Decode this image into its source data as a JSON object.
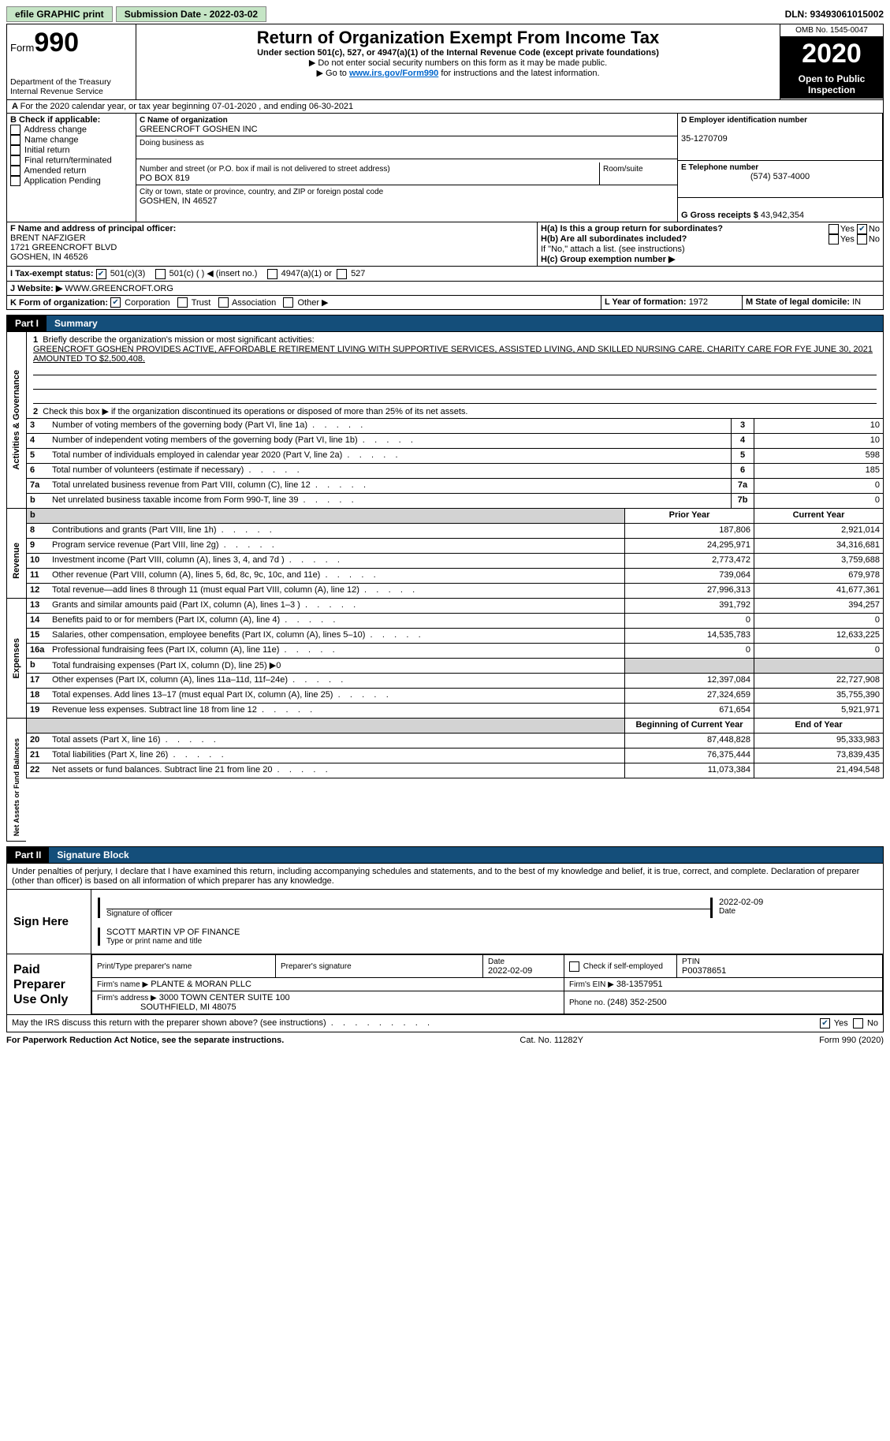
{
  "topbar": {
    "efile": "efile GRAPHIC print",
    "subdate_label": "Submission Date - 2022-03-02",
    "dln": "DLN: 93493061015002"
  },
  "header": {
    "form_label": "Form",
    "form_no": "990",
    "dept": "Department of the Treasury\nInternal Revenue Service",
    "title": "Return of Organization Exempt From Income Tax",
    "subtitle": "Under section 501(c), 527, or 4947(a)(1) of the Internal Revenue Code (except private foundations)",
    "note1": "▶ Do not enter social security numbers on this form as it may be made public.",
    "note2_a": "▶ Go to ",
    "note2_link": "www.irs.gov/Form990",
    "note2_b": " for instructions and the latest information.",
    "omb": "OMB No. 1545-0047",
    "year": "2020",
    "open": "Open to Public Inspection"
  },
  "A": {
    "line": "For the 2020 calendar year, or tax year beginning 07-01-2020   , and ending 06-30-2021"
  },
  "B": {
    "title": "B Check if applicable:",
    "items": [
      "Address change",
      "Name change",
      "Initial return",
      "Final return/terminated",
      "Amended return",
      "Application Pending"
    ]
  },
  "C": {
    "name_label": "C Name of organization",
    "name": "GREENCROFT GOSHEN INC",
    "dba_label": "Doing business as",
    "dba": "",
    "street_label": "Number and street (or P.O. box if mail is not delivered to street address)",
    "street": "PO BOX 819",
    "room_label": "Room/suite",
    "city_label": "City or town, state or province, country, and ZIP or foreign postal code",
    "city": "GOSHEN, IN  46527"
  },
  "D": {
    "label": "D Employer identification number",
    "value": "35-1270709"
  },
  "E": {
    "label": "E Telephone number",
    "value": "(574) 537-4000"
  },
  "G": {
    "label": "G Gross receipts $ ",
    "value": "43,942,354"
  },
  "F": {
    "label": "F  Name and address of principal officer:",
    "lines": [
      "BRENT NAFZIGER",
      "1721 GREENCROFT BLVD",
      "GOSHEN, IN  46526"
    ]
  },
  "H": {
    "a_label": "H(a)  Is this a group return for subordinates?",
    "a_yes": "Yes",
    "a_no": "No",
    "b_label": "H(b)  Are all subordinates included?",
    "b_note": "If \"No,\" attach a list. (see instructions)",
    "c_label": "H(c)  Group exemption number ▶"
  },
  "I": {
    "label": "I    Tax-exempt status:",
    "opt1": "501(c)(3)",
    "opt2": "501(c) (  ) ◀ (insert no.)",
    "opt3": "4947(a)(1) or",
    "opt4": "527"
  },
  "J": {
    "label": "J   Website: ▶",
    "value": "WWW.GREENCROFT.ORG"
  },
  "K": {
    "label": "K Form of organization:",
    "opts": [
      "Corporation",
      "Trust",
      "Association",
      "Other ▶"
    ]
  },
  "L": {
    "label": "L Year of formation: ",
    "value": "1972"
  },
  "M": {
    "label": "M State of legal domicile: ",
    "value": "IN"
  },
  "part1": {
    "tag": "Part I",
    "title": "Summary",
    "q1_label": "Briefly describe the organization's mission or most significant activities:",
    "q1_text": "GREENCROFT GOSHEN PROVIDES ACTIVE, AFFORDABLE RETIREMENT LIVING WITH SUPPORTIVE SERVICES, ASSISTED LIVING, AND SKILLED NURSING CARE. CHARITY CARE FOR FYE JUNE 30, 2021 AMOUNTED TO $2,500,408.",
    "q2": "Check this box ▶      if the organization discontinued its operations or disposed of more than 25% of its net assets.",
    "rows_gov": [
      {
        "n": "3",
        "t": "Number of voting members of the governing body (Part VI, line 1a)",
        "box": "3",
        "v": "10"
      },
      {
        "n": "4",
        "t": "Number of independent voting members of the governing body (Part VI, line 1b)",
        "box": "4",
        "v": "10"
      },
      {
        "n": "5",
        "t": "Total number of individuals employed in calendar year 2020 (Part V, line 2a)",
        "box": "5",
        "v": "598"
      },
      {
        "n": "6",
        "t": "Total number of volunteers (estimate if necessary)",
        "box": "6",
        "v": "185"
      },
      {
        "n": "7a",
        "t": "Total unrelated business revenue from Part VIII, column (C), line 12",
        "box": "7a",
        "v": "0"
      },
      {
        "n": "b",
        "t": "Net unrelated business taxable income from Form 990-T, line 39",
        "box": "7b",
        "v": "0"
      }
    ],
    "prior_hdr": "Prior Year",
    "current_hdr": "Current Year",
    "rev_rows": [
      {
        "n": "8",
        "t": "Contributions and grants (Part VIII, line 1h)",
        "p": "187,806",
        "c": "2,921,014"
      },
      {
        "n": "9",
        "t": "Program service revenue (Part VIII, line 2g)",
        "p": "24,295,971",
        "c": "34,316,681"
      },
      {
        "n": "10",
        "t": "Investment income (Part VIII, column (A), lines 3, 4, and 7d )",
        "p": "2,773,472",
        "c": "3,759,688"
      },
      {
        "n": "11",
        "t": "Other revenue (Part VIII, column (A), lines 5, 6d, 8c, 9c, 10c, and 11e)",
        "p": "739,064",
        "c": "679,978"
      },
      {
        "n": "12",
        "t": "Total revenue—add lines 8 through 11 (must equal Part VIII, column (A), line 12)",
        "p": "27,996,313",
        "c": "41,677,361"
      }
    ],
    "exp_rows": [
      {
        "n": "13",
        "t": "Grants and similar amounts paid (Part IX, column (A), lines 1–3 )",
        "p": "391,792",
        "c": "394,257"
      },
      {
        "n": "14",
        "t": "Benefits paid to or for members (Part IX, column (A), line 4)",
        "p": "0",
        "c": "0"
      },
      {
        "n": "15",
        "t": "Salaries, other compensation, employee benefits (Part IX, column (A), lines 5–10)",
        "p": "14,535,783",
        "c": "12,633,225"
      },
      {
        "n": "16a",
        "t": "Professional fundraising fees (Part IX, column (A), line 11e)",
        "p": "0",
        "c": "0"
      },
      {
        "n": "b",
        "t": "Total fundraising expenses (Part IX, column (D), line 25) ▶0",
        "p": "",
        "c": "",
        "gray": true
      },
      {
        "n": "17",
        "t": "Other expenses (Part IX, column (A), lines 11a–11d, 11f–24e)",
        "p": "12,397,084",
        "c": "22,727,908"
      },
      {
        "n": "18",
        "t": "Total expenses. Add lines 13–17 (must equal Part IX, column (A), line 25)",
        "p": "27,324,659",
        "c": "35,755,390"
      },
      {
        "n": "19",
        "t": "Revenue less expenses. Subtract line 18 from line 12",
        "p": "671,654",
        "c": "5,921,971"
      }
    ],
    "na_hdr1": "Beginning of Current Year",
    "na_hdr2": "End of Year",
    "na_rows": [
      {
        "n": "20",
        "t": "Total assets (Part X, line 16)",
        "p": "87,448,828",
        "c": "95,333,983"
      },
      {
        "n": "21",
        "t": "Total liabilities (Part X, line 26)",
        "p": "76,375,444",
        "c": "73,839,435"
      },
      {
        "n": "22",
        "t": "Net assets or fund balances. Subtract line 21 from line 20",
        "p": "11,073,384",
        "c": "21,494,548"
      }
    ],
    "vlabels": {
      "gov": "Activities & Governance",
      "rev": "Revenue",
      "exp": "Expenses",
      "na": "Net Assets or Fund Balances"
    }
  },
  "part2": {
    "tag": "Part II",
    "title": "Signature Block",
    "decl": "Under penalties of perjury, I declare that I have examined this return, including accompanying schedules and statements, and to the best of my knowledge and belief, it is true, correct, and complete. Declaration of preparer (other than officer) is based on all information of which preparer has any knowledge.",
    "sign_here": "Sign Here",
    "sig_officer": "Signature of officer",
    "date": "Date",
    "date_val": "2022-02-09",
    "name_title": "SCOTT MARTIN  VP OF FINANCE",
    "name_title_label": "Type or print name and title",
    "paid_label": "Paid Preparer Use Only",
    "prep_name_lbl": "Print/Type preparer's name",
    "prep_sig_lbl": "Preparer's signature",
    "prep_date": "2022-02-09",
    "self_emp": "Check       if self-employed",
    "ptin_lbl": "PTIN",
    "ptin": "P00378651",
    "firm_name_lbl": "Firm's name     ▶",
    "firm_name": "PLANTE & MORAN PLLC",
    "firm_ein_lbl": "Firm's EIN ▶",
    "firm_ein": "38-1357951",
    "firm_addr_lbl": "Firm's address ▶",
    "firm_addr1": "3000 TOWN CENTER SUITE 100",
    "firm_addr2": "SOUTHFIELD, MI  48075",
    "phone_lbl": "Phone no. ",
    "phone": "(248) 352-2500",
    "irs_q": "May the IRS discuss this return with the preparer shown above? (see instructions)",
    "yes": "Yes",
    "no": "No"
  },
  "footer": {
    "left": "For Paperwork Reduction Act Notice, see the separate instructions.",
    "mid": "Cat. No. 11282Y",
    "right": "Form 990 (2020)"
  }
}
